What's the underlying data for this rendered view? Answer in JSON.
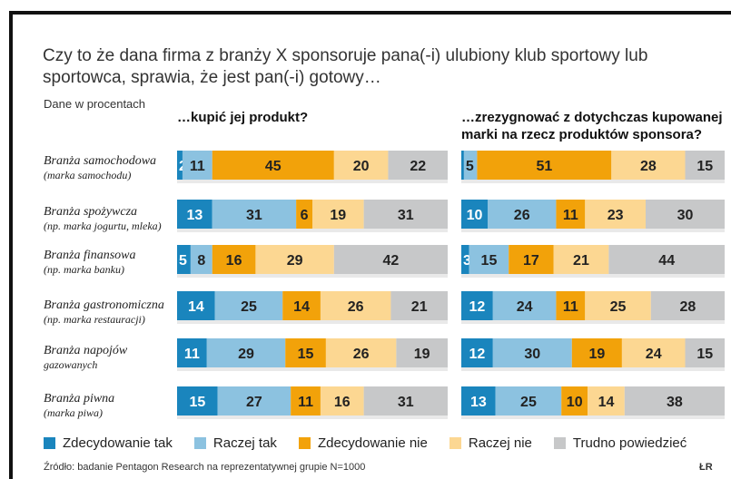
{
  "title": "Czy to że dana firma z branży X sponsoruje pana(-i) ulubiony klub sportowy lub sportowca, sprawia, że jest pan(-i) gotowy…",
  "unit_note": "Dane w procentach",
  "source": "Źródło: badanie Pentagon Research na reprezentatywnej grupie N=1000",
  "credit": "ŁR",
  "colors": {
    "decidedly_yes": "#1a85bd",
    "rather_yes": "#8cc2e0",
    "decidedly_no": "#f2a20a",
    "rather_no": "#fcd792",
    "hard_to_say": "#c7c8c9",
    "separator": "#e9e9e9"
  },
  "chart_data": {
    "type": "bar",
    "orientation": "horizontal",
    "stacked": true,
    "scale": "percent",
    "legend_placement": "bottom",
    "categories": [
      {
        "line1": "Branża samochodowa",
        "line2": "(marka samochodu)"
      },
      {
        "line1": "Branża spożywcza",
        "line2": "(np. marka jogurtu, mleka)"
      },
      {
        "line1": "Branża finansowa",
        "line2": "(np. marka banku)"
      },
      {
        "line1": "Branża gastronomiczna",
        "line2": "(np. marka restauracji)"
      },
      {
        "line1": "Branża napojów",
        "line2": "gazowanych"
      },
      {
        "line1": "Branża piwna",
        "line2": "(marka piwa)"
      }
    ],
    "series": [
      {
        "name": "Zdecydowanie tak",
        "color_key": "decidedly_yes"
      },
      {
        "name": "Raczej tak",
        "color_key": "rather_yes"
      },
      {
        "name": "Zdecydowanie nie",
        "color_key": "decidedly_no"
      },
      {
        "name": "Raczej nie",
        "color_key": "rather_no"
      },
      {
        "name": "Trudno powiedzieć",
        "color_key": "hard_to_say"
      }
    ],
    "panels": [
      {
        "title": "…kupić jej produkt?",
        "values": [
          [
            2,
            11,
            45,
            20,
            22
          ],
          [
            13,
            31,
            6,
            19,
            31
          ],
          [
            5,
            8,
            16,
            29,
            42
          ],
          [
            14,
            25,
            14,
            26,
            21
          ],
          [
            11,
            29,
            15,
            26,
            19
          ],
          [
            15,
            27,
            11,
            16,
            31
          ]
        ]
      },
      {
        "title": "…zrezygnować z dotychczas kupowanej marki na rzecz produktów sponsora?",
        "values": [
          [
            1,
            5,
            51,
            28,
            15
          ],
          [
            10,
            26,
            11,
            23,
            30
          ],
          [
            3,
            15,
            17,
            21,
            44
          ],
          [
            12,
            24,
            11,
            25,
            28
          ],
          [
            12,
            30,
            19,
            24,
            15
          ],
          [
            13,
            25,
            10,
            14,
            38
          ]
        ]
      }
    ]
  }
}
